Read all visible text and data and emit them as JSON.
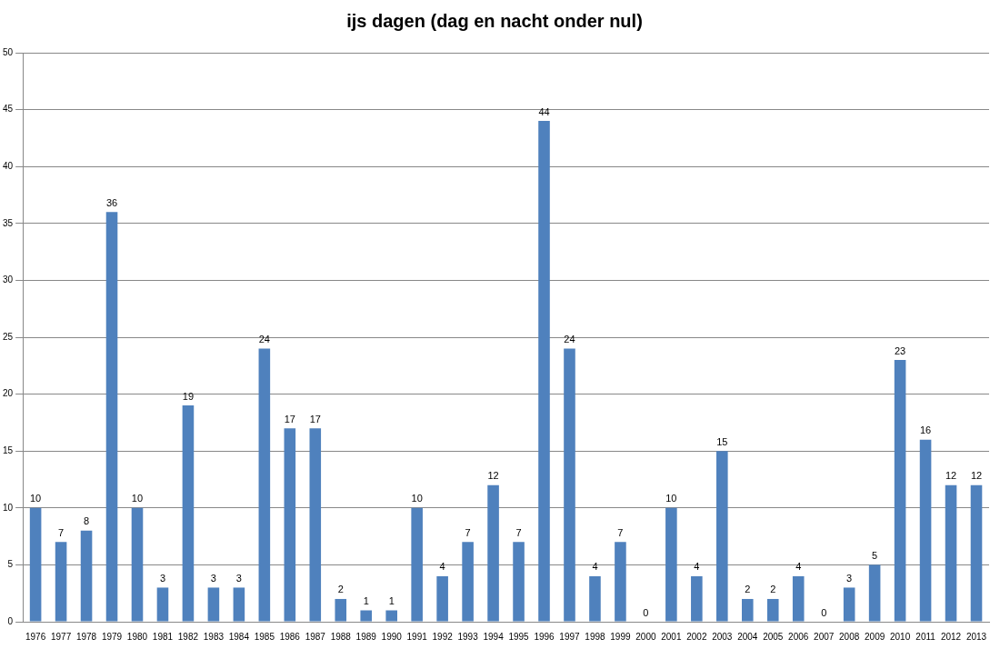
{
  "chart_data": {
    "type": "bar",
    "title": "ijs dagen (dag en nacht onder nul)",
    "categories": [
      "1976",
      "1977",
      "1978",
      "1979",
      "1980",
      "1981",
      "1982",
      "1983",
      "1984",
      "1985",
      "1986",
      "1987",
      "1988",
      "1989",
      "1990",
      "1991",
      "1992",
      "1993",
      "1994",
      "1995",
      "1996",
      "1997",
      "1998",
      "1999",
      "2000",
      "2001",
      "2002",
      "2003",
      "2004",
      "2005",
      "2006",
      "2007",
      "2008",
      "2009",
      "2010",
      "2011",
      "2012",
      "2013"
    ],
    "values": [
      10,
      7,
      8,
      36,
      10,
      3,
      19,
      3,
      3,
      24,
      17,
      17,
      2,
      1,
      1,
      10,
      4,
      7,
      12,
      7,
      44,
      24,
      4,
      7,
      0,
      10,
      4,
      15,
      2,
      2,
      4,
      0,
      3,
      5,
      23,
      16,
      12,
      12
    ],
    "color": "#4f81bd",
    "ylim": [
      0,
      50
    ],
    "yticks": [
      0,
      5,
      10,
      15,
      20,
      25,
      30,
      35,
      40,
      45,
      50
    ],
    "grid": "y",
    "legend": false,
    "data_labels": true
  }
}
